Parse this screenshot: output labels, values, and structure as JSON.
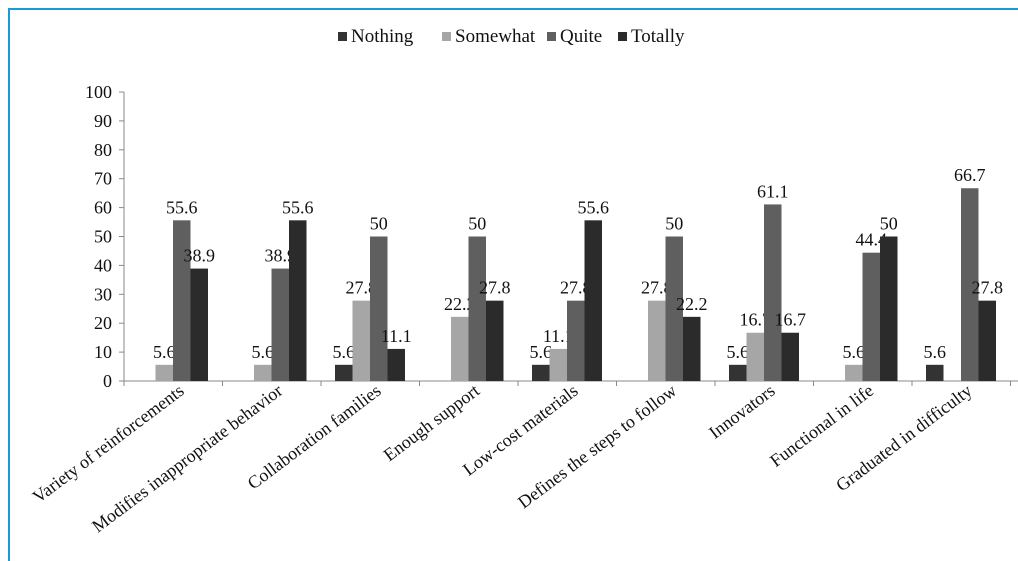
{
  "chart_data": {
    "type": "bar",
    "categories": [
      "Variety of reinforcements",
      "Modifies inappropriate behavior",
      "Collaboration families",
      "Enough support",
      "Low-cost materials",
      "Defines the steps to follow",
      "Innovators",
      "Functional in life",
      "Graduated in difficulty"
    ],
    "series": [
      {
        "name": "Nothing",
        "color": "#333333",
        "values": [
          0,
          0,
          5.6,
          0,
          5.6,
          0,
          5.6,
          0,
          5.6
        ]
      },
      {
        "name": "Somewhat",
        "color": "#a6a6a6",
        "values": [
          5.6,
          5.6,
          27.8,
          22.2,
          11.1,
          27.8,
          16.7,
          5.6,
          0
        ]
      },
      {
        "name": "Quite",
        "color": "#5f5f5f",
        "values": [
          55.6,
          38.9,
          50,
          50,
          27.8,
          50,
          61.1,
          44.4,
          66.7
        ]
      },
      {
        "name": "Totally",
        "color": "#2b2b2b",
        "values": [
          38.9,
          55.6,
          11.1,
          27.8,
          55.6,
          22.2,
          16.7,
          50,
          27.8
        ]
      }
    ],
    "data_labels": [
      [
        "",
        "5.6",
        "55.6",
        "38.9"
      ],
      [
        "",
        "5.6",
        "38.9",
        "55.6"
      ],
      [
        "5.6",
        "27.8",
        "50",
        "11.1"
      ],
      [
        "",
        "22.2",
        "50",
        "27.8"
      ],
      [
        "5.6",
        "11.1",
        "27.8",
        "55.6"
      ],
      [
        "",
        "27.8",
        "50",
        "22.2"
      ],
      [
        "5.6",
        "16.7",
        "61.1",
        "16.7"
      ],
      [
        "",
        "5.6",
        "44.4",
        "50"
      ],
      [
        "5.6",
        "",
        "66.7",
        "27.8"
      ]
    ],
    "ylim": [
      0,
      100
    ],
    "yticks": [
      "0",
      "10",
      "20",
      "30",
      "40",
      "50",
      "60",
      "70",
      "80",
      "90",
      "100"
    ],
    "legend_position": "top-center",
    "grid": false
  }
}
